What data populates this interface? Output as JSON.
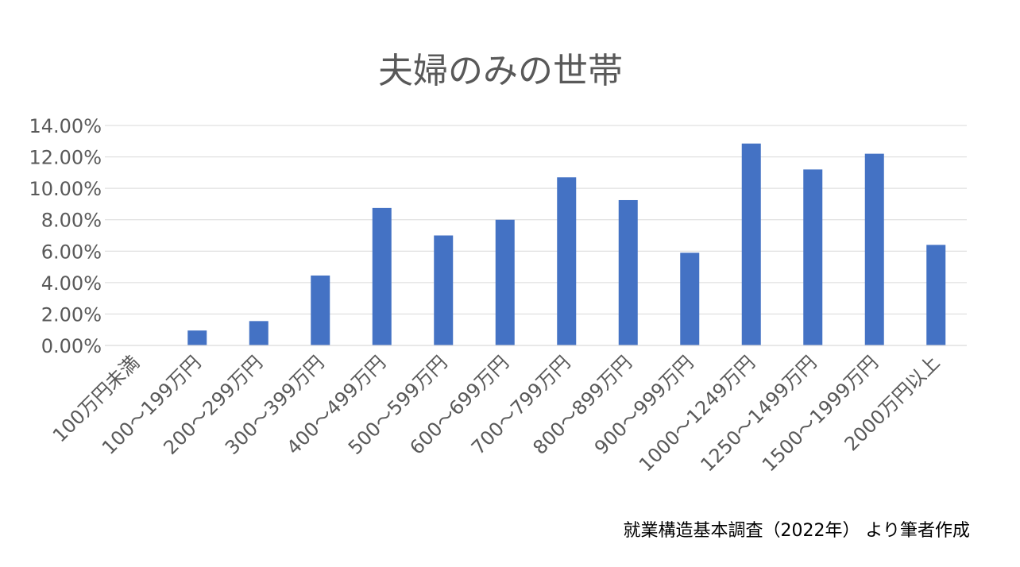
{
  "chart_data": {
    "type": "bar",
    "title": "夫婦のみの世帯",
    "categories": [
      "100万円未満",
      "100～199万円",
      "200～299万円",
      "300～399万円",
      "400～499万円",
      "500～599万円",
      "600～699万円",
      "700～799万円",
      "800～899万円",
      "900～999万円",
      "1000～1249万円",
      "1250～1499万円",
      "1500～1999万円",
      "2000万円以上"
    ],
    "values": [
      0.0,
      0.95,
      1.55,
      4.45,
      8.75,
      7.0,
      8.0,
      10.7,
      9.25,
      5.9,
      12.85,
      11.2,
      12.2,
      6.4
    ],
    "ylim": [
      0,
      14
    ],
    "yticks": [
      "0.00%",
      "2.00%",
      "4.00%",
      "6.00%",
      "8.00%",
      "10.00%",
      "12.00%",
      "14.00%"
    ],
    "ytick_values": [
      0,
      2,
      4,
      6,
      8,
      10,
      12,
      14
    ],
    "grid": true,
    "legend": "none",
    "bar_color": "#4472c4",
    "source_note": "就業構造基本調査（2022年） より筆者作成"
  }
}
